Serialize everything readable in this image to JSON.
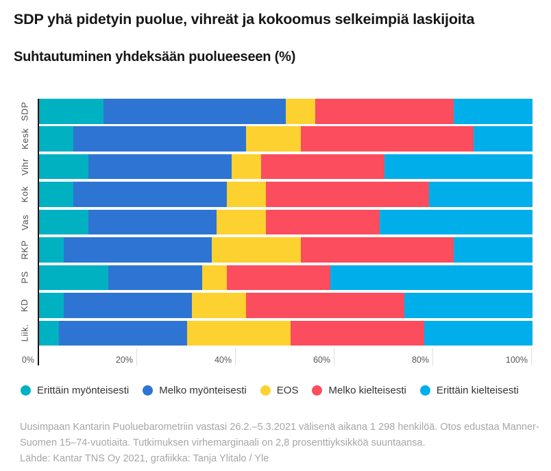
{
  "header": {
    "title": "SDP yhä pidetyin puolue, vihreät ja kokoomus selkeimpiä laskijoita",
    "subtitle": "Suhtautuminen yhdeksään puolueeseen (%)"
  },
  "chart_data": {
    "type": "bar",
    "orientation": "horizontal",
    "stacked": true,
    "unit": "%",
    "title": "SDP yhä pidetyin puolue, vihreät ja kokoomus selkeimpiä laskijoita",
    "subtitle": "Suhtautuminen yhdeksään puolueeseen (%)",
    "categories": [
      "SDP",
      "Kesk",
      "Vihr",
      "Kok",
      "Vas",
      "RKP",
      "PS",
      "KD",
      "Liik."
    ],
    "series": [
      {
        "name": "Erittäin myönteisesti",
        "color": "#00b1c2",
        "values": [
          13,
          7,
          10,
          7,
          10,
          5,
          14,
          5,
          4
        ]
      },
      {
        "name": "Melko myönteisesti",
        "color": "#2e74d3",
        "values": [
          37,
          35,
          29,
          31,
          26,
          30,
          19,
          26,
          26
        ]
      },
      {
        "name": "EOS",
        "color": "#fdd12f",
        "values": [
          6,
          11,
          6,
          8,
          10,
          18,
          5,
          11,
          21
        ]
      },
      {
        "name": "Melko kielteisesti",
        "color": "#fb4d5d",
        "values": [
          28,
          35,
          25,
          33,
          23,
          31,
          21,
          32,
          27
        ]
      },
      {
        "name": "Erittäin kielteisesti",
        "color": "#00aeea",
        "values": [
          16,
          12,
          30,
          21,
          31,
          16,
          41,
          26,
          22
        ]
      }
    ],
    "x_ticks": [
      "0%",
      "20%",
      "40%",
      "60%",
      "80%",
      "100%"
    ],
    "xlim": [
      0,
      100
    ],
    "grid": true,
    "legend_position": "bottom"
  },
  "footnote": {
    "line1": "Uusimpaan Kantarin Puoluebarometriin vastasi 26.2.–5.3.2021 välisenä aikana 1 298 henkilöä. Otos edustaa Manner-Suomen 15–74-vuotiaita. Tutkimuksen virhemarginaali on 2,8 prosenttiyksikköä suuntaansa.",
    "line2": "Lähde: Kantar TNS Oy 2021, grafiikka: Tanja Ylitalo / Yle"
  }
}
